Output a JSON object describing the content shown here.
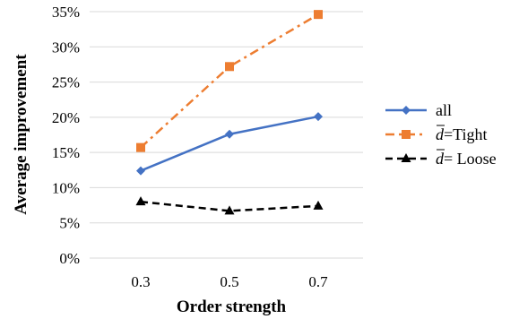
{
  "chart_data": {
    "type": "line",
    "title": "",
    "xlabel": "Order strength",
    "ylabel": "Average improvement",
    "categories": [
      "0.3",
      "0.5",
      "0.7"
    ],
    "ylim": [
      0,
      35
    ],
    "yticks": [
      0,
      5,
      10,
      15,
      20,
      25,
      30,
      35
    ],
    "ytick_labels": [
      "0%",
      "5%",
      "10%",
      "15%",
      "20%",
      "25%",
      "30%",
      "35%"
    ],
    "grid": "horizontal",
    "legend_position": "right",
    "series": [
      {
        "name": "all",
        "values": [
          12.4,
          17.6,
          20.1
        ],
        "color": "#4472c4",
        "marker": "diamond",
        "line": "solid"
      },
      {
        "name": "Tight",
        "values": [
          15.7,
          27.2,
          34.6
        ],
        "color": "#ed7d31",
        "marker": "square",
        "line": "dash-dot"
      },
      {
        "name": "Loose",
        "values": [
          8.0,
          6.7,
          7.4
        ],
        "color": "#000000",
        "marker": "triangle",
        "line": "dashed"
      }
    ],
    "legend_labels": [
      {
        "sym": "",
        "eq": "all"
      },
      {
        "sym": "d",
        "eq": "=Tight"
      },
      {
        "sym": "d",
        "eq": "= Loose"
      }
    ]
  }
}
